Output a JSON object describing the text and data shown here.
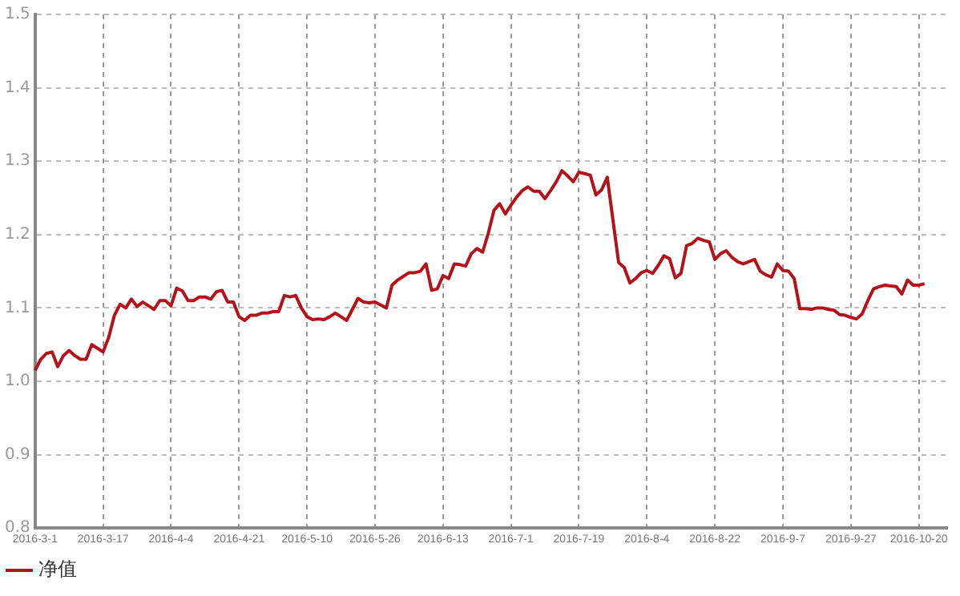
{
  "chart_data": {
    "type": "line",
    "categories": [
      "2016-3-1",
      null,
      null,
      null,
      null,
      null,
      null,
      null,
      null,
      null,
      null,
      null,
      "2016-3-17",
      null,
      null,
      null,
      null,
      null,
      null,
      null,
      null,
      null,
      null,
      null,
      "2016-4-4",
      null,
      null,
      null,
      null,
      null,
      null,
      null,
      null,
      null,
      null,
      null,
      "2016-4-21",
      null,
      null,
      null,
      null,
      null,
      null,
      null,
      null,
      null,
      null,
      null,
      "2016-5-10",
      null,
      null,
      null,
      null,
      null,
      null,
      null,
      null,
      null,
      null,
      null,
      "2016-5-26",
      null,
      null,
      null,
      null,
      null,
      null,
      null,
      null,
      null,
      null,
      null,
      "2016-6-13",
      null,
      null,
      null,
      null,
      null,
      null,
      null,
      null,
      null,
      null,
      null,
      "2016-7-1",
      null,
      null,
      null,
      null,
      null,
      null,
      null,
      null,
      null,
      null,
      null,
      "2016-7-19",
      null,
      null,
      null,
      null,
      null,
      null,
      null,
      null,
      null,
      null,
      null,
      "2016-8-4",
      null,
      null,
      null,
      null,
      null,
      null,
      null,
      null,
      null,
      null,
      null,
      "2016-8-22",
      null,
      null,
      null,
      null,
      null,
      null,
      null,
      null,
      null,
      null,
      null,
      "2016-9-7",
      null,
      null,
      null,
      null,
      null,
      null,
      null,
      null,
      null,
      null,
      null,
      "2016-9-27",
      null,
      null,
      null,
      null,
      null,
      null,
      null,
      null,
      null,
      null,
      null,
      "2016-10-20",
      null,
      null,
      null,
      null,
      null
    ],
    "series": [
      {
        "name": "净值",
        "color": "#b4121b",
        "values": [
          1.015,
          1.03,
          1.038,
          1.04,
          1.02,
          1.035,
          1.042,
          1.035,
          1.03,
          1.03,
          1.05,
          1.045,
          1.04,
          1.06,
          1.09,
          1.105,
          1.1,
          1.112,
          1.102,
          1.108,
          1.103,
          1.098,
          1.11,
          1.11,
          1.103,
          1.127,
          1.123,
          1.11,
          1.11,
          1.115,
          1.115,
          1.112,
          1.122,
          1.124,
          1.108,
          1.108,
          1.088,
          1.083,
          1.09,
          1.09,
          1.093,
          1.093,
          1.095,
          1.095,
          1.117,
          1.115,
          1.117,
          1.1,
          1.088,
          1.084,
          1.085,
          1.084,
          1.088,
          1.093,
          1.088,
          1.083,
          1.098,
          1.113,
          1.108,
          1.107,
          1.108,
          1.104,
          1.1,
          1.131,
          1.138,
          1.143,
          1.148,
          1.148,
          1.15,
          1.16,
          1.124,
          1.126,
          1.144,
          1.14,
          1.16,
          1.159,
          1.157,
          1.174,
          1.181,
          1.176,
          1.202,
          1.233,
          1.242,
          1.228,
          1.24,
          1.251,
          1.26,
          1.265,
          1.259,
          1.259,
          1.249,
          1.26,
          1.272,
          1.287,
          1.28,
          1.272,
          1.285,
          1.283,
          1.281,
          1.254,
          1.261,
          1.278,
          1.22,
          1.162,
          1.155,
          1.134,
          1.14,
          1.148,
          1.151,
          1.147,
          1.158,
          1.171,
          1.167,
          1.141,
          1.147,
          1.185,
          1.188,
          1.195,
          1.192,
          1.19,
          1.166,
          1.174,
          1.178,
          1.169,
          1.163,
          1.16,
          1.163,
          1.166,
          1.15,
          1.145,
          1.142,
          1.16,
          1.151,
          1.15,
          1.14,
          1.099,
          1.099,
          1.098,
          1.1,
          1.1,
          1.098,
          1.097,
          1.091,
          1.09,
          1.087,
          1.085,
          1.092,
          1.11,
          1.126,
          1.129,
          1.131,
          1.13,
          1.129,
          1.119,
          1.138,
          1.131,
          1.131,
          1.133,
          null,
          null,
          null,
          null
        ]
      }
    ],
    "ylim": [
      0.8,
      1.5
    ],
    "yticks": [
      0.8,
      0.9,
      {
        "value": 1,
        "label": "1.0"
      },
      1.1,
      1.2,
      1.3,
      1.4,
      1.5
    ],
    "grid": true,
    "legend": "bottom left"
  }
}
